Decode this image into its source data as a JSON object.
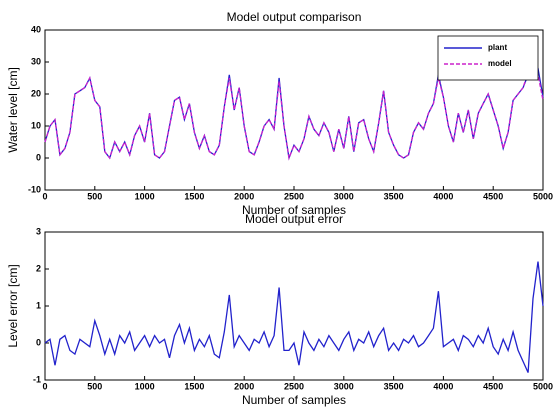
{
  "chart_data": [
    {
      "type": "line",
      "title": "Model output comparison",
      "xlabel": "Number of samples",
      "ylabel": "Water level [cm]",
      "x": [
        0,
        50,
        100,
        150,
        200,
        250,
        300,
        350,
        400,
        450,
        500,
        550,
        600,
        650,
        700,
        750,
        800,
        850,
        900,
        950,
        1000,
        1050,
        1100,
        1150,
        1200,
        1250,
        1300,
        1350,
        1400,
        1450,
        1500,
        1550,
        1600,
        1650,
        1700,
        1750,
        1800,
        1850,
        1900,
        1950,
        2000,
        2050,
        2100,
        2150,
        2200,
        2250,
        2300,
        2350,
        2400,
        2450,
        2500,
        2550,
        2600,
        2650,
        2700,
        2750,
        2800,
        2850,
        2900,
        2950,
        3000,
        3050,
        3100,
        3150,
        3200,
        3250,
        3300,
        3350,
        3400,
        3450,
        3500,
        3550,
        3600,
        3650,
        3700,
        3750,
        3800,
        3850,
        3900,
        3950,
        4000,
        4050,
        4100,
        4150,
        4200,
        4250,
        4300,
        4350,
        4400,
        4450,
        4500,
        4550,
        4600,
        4650,
        4700,
        4750,
        4800,
        4850,
        4900,
        4950,
        5000
      ],
      "series": [
        {
          "name": "plant",
          "color": "#2222cc",
          "linestyle": "solid",
          "values": [
            5,
            10,
            12,
            1,
            3,
            8,
            20,
            21,
            22,
            25,
            18,
            16,
            2,
            0,
            5,
            2,
            5,
            1,
            7,
            10,
            5,
            14,
            1,
            0,
            2,
            10,
            18,
            19,
            12,
            17,
            8,
            3,
            7,
            2,
            1,
            4,
            16,
            26,
            15,
            22,
            10,
            2,
            1,
            5,
            10,
            12,
            9,
            25,
            10,
            0,
            4,
            2,
            6,
            13,
            9,
            7,
            11,
            8,
            2,
            9,
            3,
            13,
            2,
            11,
            12,
            6,
            2,
            11,
            21,
            8,
            4,
            1,
            0,
            1,
            8,
            11,
            9,
            14,
            17,
            26,
            19,
            10,
            5,
            14,
            8,
            15,
            6,
            14,
            17,
            20,
            15,
            10,
            3,
            8,
            18,
            20,
            22,
            26,
            30,
            28,
            19
          ]
        },
        {
          "name": "model",
          "color": "#cc22cc",
          "linestyle": "dashed",
          "values": [
            5,
            10,
            12,
            1,
            3,
            8,
            20,
            21,
            22,
            25,
            18,
            16,
            2,
            0,
            5,
            2,
            5,
            1,
            7,
            10,
            5,
            14,
            1,
            0,
            2,
            10,
            18,
            19,
            12,
            17,
            8,
            3,
            7,
            2,
            1,
            4,
            16,
            25,
            15,
            22,
            10,
            2,
            1,
            5,
            10,
            12,
            9,
            24,
            10,
            0,
            4,
            2,
            6,
            13,
            9,
            7,
            11,
            8,
            2,
            9,
            3,
            13,
            2,
            11,
            12,
            6,
            2,
            11,
            21,
            8,
            4,
            1,
            0,
            1,
            8,
            11,
            9,
            14,
            17,
            25,
            19,
            10,
            5,
            14,
            8,
            15,
            6,
            14,
            17,
            20,
            15,
            10,
            3,
            8,
            18,
            20,
            22,
            27,
            29,
            26,
            18
          ]
        }
      ],
      "xlim": [
        0,
        5000
      ],
      "ylim": [
        -10,
        40
      ],
      "xticks": [
        0,
        500,
        1000,
        1500,
        2000,
        2500,
        3000,
        3500,
        4000,
        4500,
        5000
      ],
      "yticks": [
        -10,
        0,
        10,
        20,
        30,
        40
      ],
      "legend": "upper right",
      "grid": false
    },
    {
      "type": "line",
      "title": "Model output error",
      "xlabel": "Number of samples",
      "ylabel": "Level error [cm]",
      "x": [
        0,
        50,
        100,
        150,
        200,
        250,
        300,
        350,
        400,
        450,
        500,
        550,
        600,
        650,
        700,
        750,
        800,
        850,
        900,
        950,
        1000,
        1050,
        1100,
        1150,
        1200,
        1250,
        1300,
        1350,
        1400,
        1450,
        1500,
        1550,
        1600,
        1650,
        1700,
        1750,
        1800,
        1850,
        1900,
        1950,
        2000,
        2050,
        2100,
        2150,
        2200,
        2250,
        2300,
        2350,
        2400,
        2450,
        2500,
        2550,
        2600,
        2650,
        2700,
        2750,
        2800,
        2850,
        2900,
        2950,
        3000,
        3050,
        3100,
        3150,
        3200,
        3250,
        3300,
        3350,
        3400,
        3450,
        3500,
        3550,
        3600,
        3650,
        3700,
        3750,
        3800,
        3850,
        3900,
        3950,
        4000,
        4050,
        4100,
        4150,
        4200,
        4250,
        4300,
        4350,
        4400,
        4450,
        4500,
        4550,
        4600,
        4650,
        4700,
        4750,
        4800,
        4850,
        4900,
        4950,
        5000
      ],
      "series": [
        {
          "color": "#2222cc",
          "linestyle": "solid",
          "values": [
            0,
            0.1,
            -0.6,
            0.1,
            0.2,
            -0.2,
            -0.3,
            0.1,
            0,
            -0.1,
            0.6,
            0.2,
            -0.3,
            0.1,
            -0.3,
            0.2,
            0,
            0.3,
            -0.2,
            0,
            0.2,
            -0.1,
            0.2,
            0,
            0.1,
            -0.4,
            0.2,
            0.5,
            0,
            0.4,
            -0.2,
            0.1,
            -0.1,
            0.2,
            -0.3,
            -0.4,
            0.3,
            1.3,
            -0.1,
            0.2,
            0,
            -0.2,
            0.1,
            0,
            0.3,
            -0.1,
            0.2,
            1.5,
            -0.2,
            -0.2,
            0,
            -0.6,
            0.3,
            0,
            -0.2,
            0.1,
            -0.1,
            0.2,
            0,
            -0.2,
            0.1,
            0.3,
            -0.2,
            0.1,
            0,
            0.3,
            -0.1,
            0.2,
            0.4,
            -0.2,
            0,
            -0.2,
            0.1,
            0,
            0.2,
            -0.1,
            0,
            0.2,
            0.4,
            1.4,
            -0.1,
            0,
            0.1,
            -0.2,
            0.2,
            0.1,
            -0.1,
            0.2,
            0,
            0.4,
            -0.1,
            -0.3,
            0.1,
            -0.2,
            0.3,
            -0.2,
            -0.5,
            -0.8,
            1.2,
            2.2,
            1
          ]
        }
      ],
      "xlim": [
        0,
        5000
      ],
      "ylim": [
        -1,
        3
      ],
      "xticks": [
        0,
        500,
        1000,
        1500,
        2000,
        2500,
        3000,
        3500,
        4000,
        4500,
        5000
      ],
      "yticks": [
        -1,
        0,
        1,
        2,
        3
      ],
      "grid": false
    }
  ]
}
